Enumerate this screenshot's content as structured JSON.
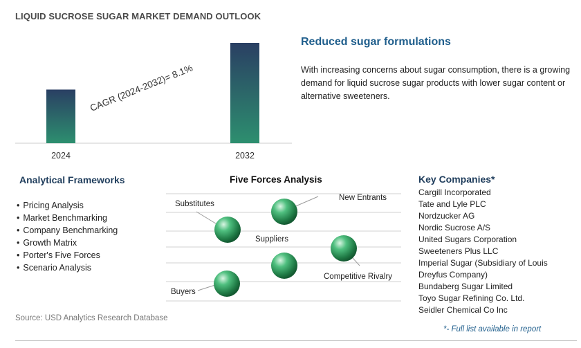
{
  "title": "LIQUID SUCROSE SUGAR MARKET DEMAND OUTLOOK",
  "chart_data": {
    "type": "bar",
    "categories": [
      "2024",
      "2032"
    ],
    "values": [
      1.0,
      1.87
    ],
    "annotation": "CAGR (2024-2032)=   8.1%",
    "colors": {
      "bar_top": "#2a3f63",
      "bar_bottom": "#2d8f6f"
    }
  },
  "headline": "Reduced sugar formulations",
  "description": "With increasing concerns about sugar consumption, there is a growing demand for liquid sucrose sugar products with lower sugar content or alternative sweeteners.",
  "frameworks": {
    "title": "Analytical Frameworks",
    "items": [
      "Pricing Analysis",
      "Market Benchmarking",
      "Company Benchmarking",
      "Growth Matrix",
      "Porter's Five Forces",
      "Scenario Analysis"
    ]
  },
  "five_forces": {
    "title": "Five Forces Analysis",
    "labels": {
      "substitutes": "Substitutes",
      "new_entrants": "New Entrants",
      "suppliers": "Suppliers",
      "competitive_rivalry": "Competitive Rivalry",
      "buyers": "Buyers"
    },
    "sphere_color": "#2e8b57"
  },
  "companies": {
    "title": "Key Companies*",
    "items": [
      "Cargill Incorporated",
      "Tate and Lyle PLC",
      "Nordzucker AG",
      "Nordic Sucrose A/S",
      "United Sugars Corporation",
      "Sweeteners Plus LLC",
      "Imperial Sugar (Subsidiary of Louis Dreyfus Company)",
      "Bundaberg Sugar Limited",
      "Toyo Sugar Refining Co. Ltd.",
      "Seidler Chemical Co Inc"
    ]
  },
  "source": "Source: USD Analytics Research Database",
  "footnote": "*- Full list available in report"
}
